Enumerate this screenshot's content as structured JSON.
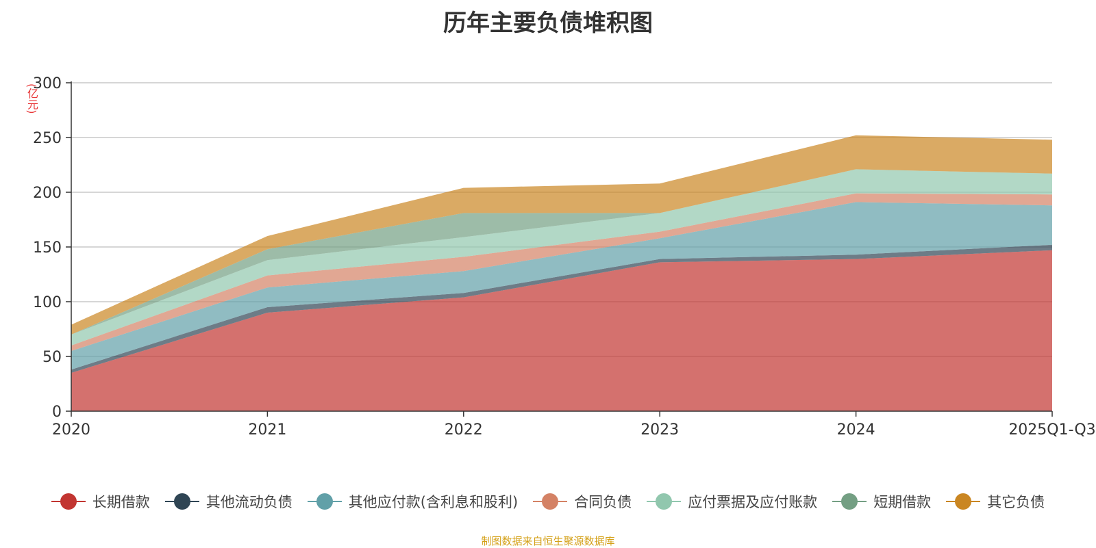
{
  "chart_data": {
    "type": "area",
    "title": "历年主要负债堆积图",
    "unit": "(亿元)",
    "categories": [
      "2020",
      "2021",
      "2022",
      "2023",
      "2024",
      "2025Q1-Q3"
    ],
    "ylim": [
      0,
      300
    ],
    "yticks": [
      0,
      50,
      100,
      150,
      200,
      250,
      300
    ],
    "grid": true,
    "legend_position": "bottom",
    "stacked": true,
    "series": [
      {
        "name": "长期借款",
        "color": "#c23531",
        "values": [
          35,
          90,
          104,
          136,
          139,
          147
        ]
      },
      {
        "name": "其他流动负债",
        "color": "#2f4554",
        "values": [
          3,
          5,
          4,
          3,
          4,
          5
        ]
      },
      {
        "name": "其他应付款(含利息和股利)",
        "color": "#61a0a8",
        "values": [
          17,
          18,
          20,
          19,
          48,
          36
        ]
      },
      {
        "name": "合同负债",
        "color": "#d48265",
        "values": [
          5,
          11,
          13,
          6,
          8,
          10
        ]
      },
      {
        "name": "应付票据及应付账款",
        "color": "#91c7ae",
        "values": [
          10,
          14,
          18,
          17,
          22,
          19
        ]
      },
      {
        "name": "短期借款",
        "color": "#749f83",
        "values": [
          0,
          10,
          22,
          0,
          0,
          0
        ]
      },
      {
        "name": "其它负债",
        "color": "#ca8622",
        "values": [
          9,
          12,
          23,
          27,
          31,
          31
        ]
      }
    ]
  },
  "footer": "制图数据来自恒生聚源数据库"
}
